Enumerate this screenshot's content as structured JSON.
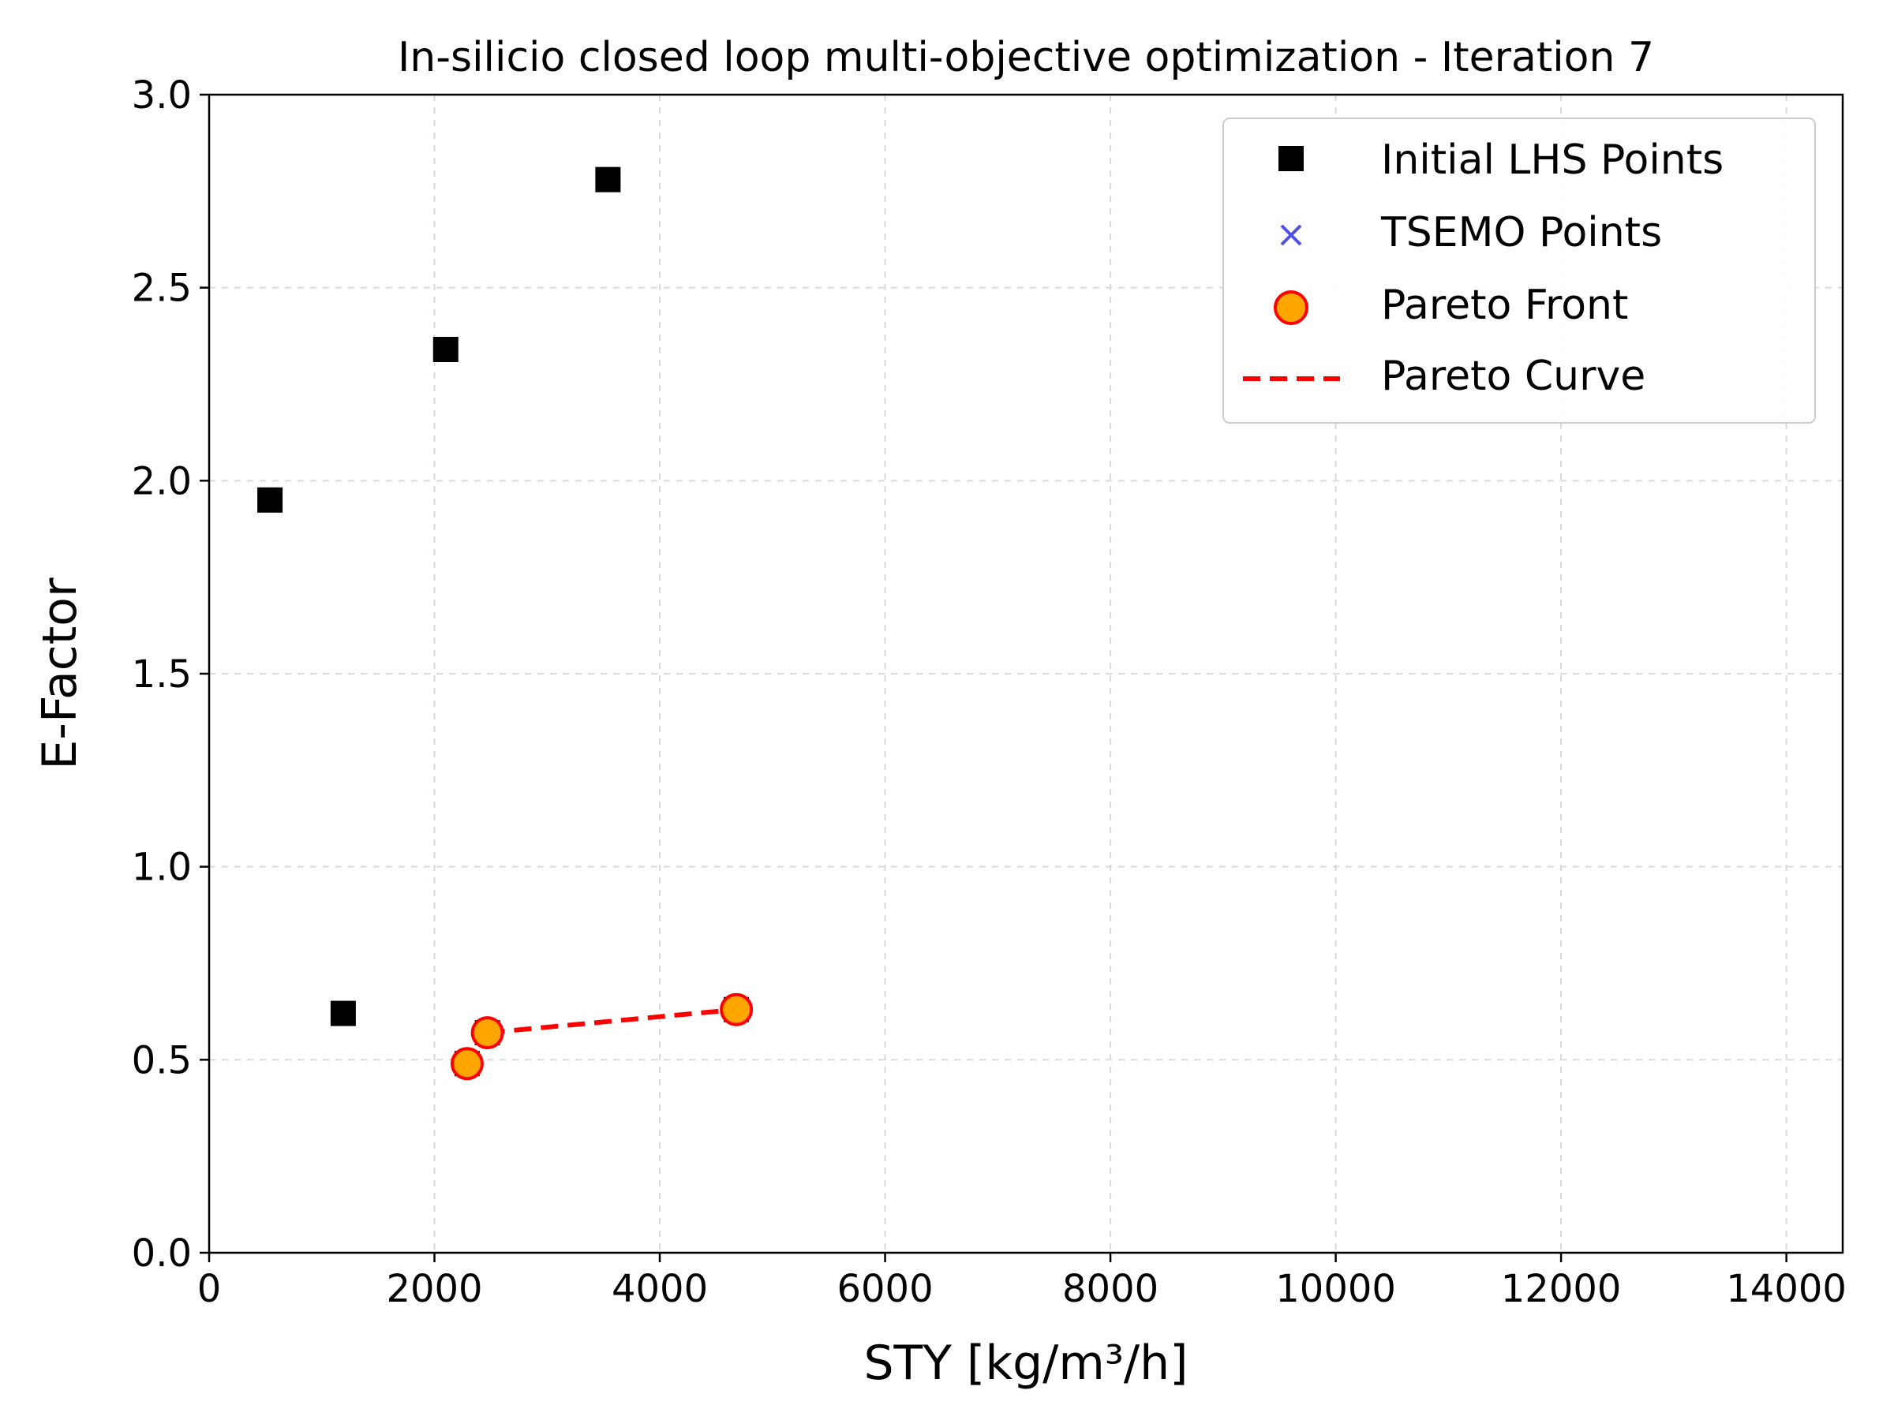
{
  "chart_data": {
    "type": "scatter",
    "title": "In-silicio closed loop multi-objective optimization - Iteration 7",
    "xlabel": "STY [kg/m³/h]",
    "ylabel": "E-Factor",
    "xlim": [
      0,
      14500
    ],
    "ylim": [
      0,
      3.0
    ],
    "x_ticks": [
      0,
      2000,
      4000,
      6000,
      8000,
      10000,
      12000,
      14000
    ],
    "y_ticks": [
      0.0,
      0.5,
      1.0,
      1.5,
      2.0,
      2.5,
      3.0
    ],
    "x_tick_labels": [
      "0",
      "2000",
      "4000",
      "6000",
      "8000",
      "10000",
      "12000",
      "14000"
    ],
    "y_tick_labels": [
      "0.0",
      "0.5",
      "1.0",
      "1.5",
      "2.0",
      "2.5",
      "3.0"
    ],
    "grid": true,
    "legend_position": "top-right",
    "series": [
      {
        "name": "Initial LHS Points",
        "kind": "scatter",
        "marker": "square",
        "color": "#000000",
        "points": [
          {
            "x": 540,
            "y": 1.95
          },
          {
            "x": 2100,
            "y": 2.34
          },
          {
            "x": 3540,
            "y": 2.78
          },
          {
            "x": 1190,
            "y": 0.62
          },
          {
            "x": 2290,
            "y": 0.49
          },
          {
            "x": 2470,
            "y": 0.57
          },
          {
            "x": 4680,
            "y": 0.63
          }
        ]
      },
      {
        "name": "TSEMO Points",
        "kind": "scatter",
        "marker": "x",
        "color": "#4f4fe8",
        "points": []
      },
      {
        "name": "Pareto Front",
        "kind": "scatter",
        "marker": "circle",
        "color": "#ffa500",
        "edge_color": "#ff0000",
        "points": [
          {
            "x": 2290,
            "y": 0.49
          },
          {
            "x": 2470,
            "y": 0.57
          },
          {
            "x": 4680,
            "y": 0.63
          }
        ]
      },
      {
        "name": "Pareto Curve",
        "kind": "line",
        "line_style": "dashed",
        "color": "#ff0000",
        "points": [
          {
            "x": 2470,
            "y": 0.57
          },
          {
            "x": 4680,
            "y": 0.63
          }
        ]
      }
    ]
  }
}
